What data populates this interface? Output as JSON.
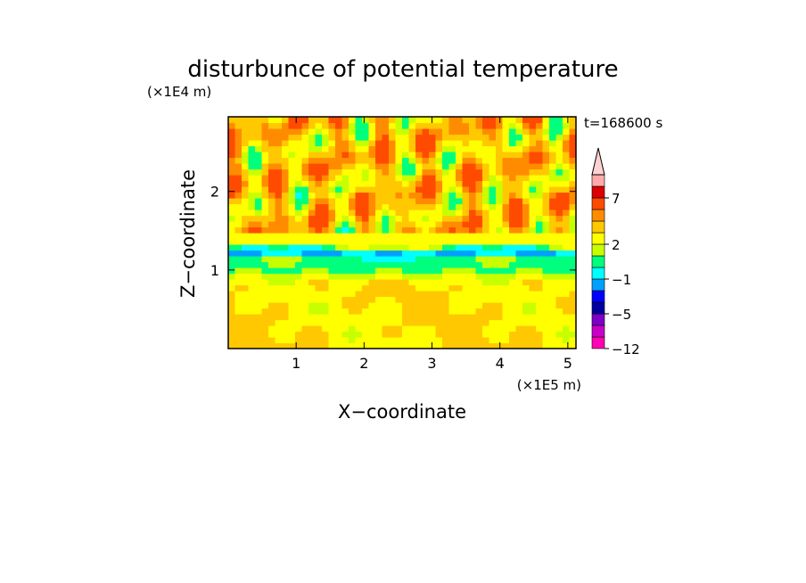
{
  "chart_data": {
    "type": "heatmap",
    "title": "disturbunce of potential temperature",
    "timestamp": "t=168600 s",
    "xlabel": "X−coordinate",
    "ylabel": "Z−coordinate",
    "x_unit": "(×1E5 m)",
    "y_unit": "(×1E4 m)",
    "xlim": [
      0,
      5.12
    ],
    "ylim": [
      0,
      2.95
    ],
    "x_ticks": [
      1,
      2,
      3,
      4,
      5
    ],
    "x_tick_labels": [
      "1",
      "2",
      "3",
      "4",
      "5"
    ],
    "y_ticks": [
      1,
      2
    ],
    "y_tick_labels": [
      "1",
      "2"
    ],
    "colorbar": {
      "labels": [
        "7",
        "2",
        "−1",
        "−5",
        "−12"
      ],
      "colors": [
        "#ff00b4",
        "#c800c8",
        "#7d00c8",
        "#0000a0",
        "#0000ff",
        "#00a0ff",
        "#00ffff",
        "#00ff7d",
        "#c8ff00",
        "#ffff00",
        "#ffc800",
        "#ff8c00",
        "#ff4b00",
        "#dc0000",
        "#ffaaaa",
        "#ffd2d2"
      ]
    },
    "field_features": [
      {
        "kind": "band",
        "z_center": 1.22,
        "z_halfwidth": 0.07,
        "value": -4,
        "label": "cold layer (blue)"
      },
      {
        "kind": "band",
        "z_center": 1.05,
        "z_halfwidth": 0.12,
        "value": -1.5,
        "label": "cyan layer"
      },
      {
        "kind": "band",
        "z_center": 0.45,
        "z_halfwidth": 0.4,
        "value": 0.5,
        "label": "lower yellow region"
      }
    ]
  }
}
